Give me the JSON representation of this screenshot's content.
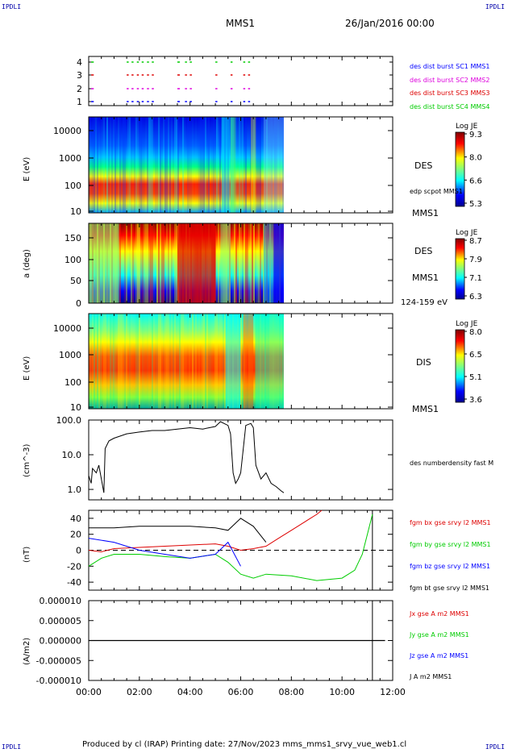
{
  "corners": {
    "tl": "IPDLI",
    "tr": "IPDLI",
    "bl": "IPDLI",
    "br": "IPDLI"
  },
  "header": {
    "spacecraft": "MMS1",
    "date": "26/Jan/2016 00:00"
  },
  "footer": {
    "text": "Produced by cl (IRAP)   Printing date: 27/Nov/2023   mms_mms1_srvy_vue_web1.cl"
  },
  "colors": {
    "blue": "#0000ff",
    "magenta": "#dd00dd",
    "red": "#dd0000",
    "green": "#00cc00",
    "black": "#000000"
  },
  "chart_data": [
    {
      "type": "scatter",
      "name": "burst-availability",
      "yticks": [
        "1",
        "2",
        "3",
        "4"
      ],
      "legend": [
        {
          "text": "des dist burst SC1 MMS1",
          "color": "#0000ff"
        },
        {
          "text": "des dist burst SC2 MMS2",
          "color": "#dd00dd"
        },
        {
          "text": "des dist burst SC3 MMS3",
          "color": "#dd0000"
        },
        {
          "text": "des dist burst SC4 MMS4",
          "color": "#00cc00"
        }
      ],
      "segments_hours": [
        [
          0.1,
          0.2
        ],
        [
          1.5,
          1.75
        ],
        [
          1.9,
          2.1
        ],
        [
          2.3,
          2.6
        ],
        [
          3.5,
          3.6
        ],
        [
          3.8,
          4.0
        ],
        [
          5.0,
          5.15
        ],
        [
          5.6,
          5.75
        ],
        [
          6.1,
          6.3
        ]
      ],
      "xlim": [
        0,
        12
      ]
    },
    {
      "type": "heatmap",
      "name": "des-energy",
      "ylabel": "E (eV)",
      "ytick_labels": [
        "10",
        "100",
        "1000",
        "10000"
      ],
      "colorbar": {
        "title": "Log JE",
        "ticks": [
          "9.3",
          "8.0",
          "6.6",
          "5.3"
        ]
      },
      "right_labels": [
        "DES",
        "edp scpot MMS1",
        "MMS1"
      ],
      "x_end_hours": 7.7,
      "xlim": [
        0,
        12
      ]
    },
    {
      "type": "heatmap",
      "name": "des-pitch-angle",
      "ylabel": "a (deg)",
      "ytick_labels": [
        "0",
        "50",
        "100",
        "150"
      ],
      "colorbar": {
        "title": "Log JE",
        "ticks": [
          "8.7",
          "7.9",
          "7.1",
          "6.3"
        ]
      },
      "right_labels": [
        "DES",
        "MMS1",
        "124-159 eV"
      ],
      "x_end_hours": 7.7,
      "xlim": [
        0,
        12
      ]
    },
    {
      "type": "heatmap",
      "name": "dis-energy",
      "ylabel": "E (eV)",
      "ytick_labels": [
        "10",
        "100",
        "1000",
        "10000"
      ],
      "colorbar": {
        "title": "Log JE",
        "ticks": [
          "8.0",
          "6.5",
          "5.1",
          "3.6"
        ]
      },
      "right_labels": [
        "DIS",
        "MMS1"
      ],
      "x_end_hours": 7.7,
      "xlim": [
        0,
        12
      ]
    },
    {
      "type": "line",
      "name": "density",
      "ylabel": "(cm^-3)",
      "yscale": "log",
      "ylim": [
        0.5,
        100
      ],
      "ytick_labels": [
        "1.0",
        "10.0",
        "100.0"
      ],
      "legend": [
        {
          "text": "des numberdensity fast M",
          "color": "#000000"
        }
      ],
      "series": [
        {
          "values_t": [
            0,
            0.1,
            0.15,
            0.3,
            0.4,
            0.5,
            0.6,
            0.65,
            0.8,
            1.0,
            1.5,
            2.0,
            2.5,
            3.0,
            3.5,
            4.0,
            4.5,
            5.0,
            5.2,
            5.5,
            5.6,
            5.7,
            5.8,
            5.9,
            6.0,
            6.2,
            6.4,
            6.5,
            6.6,
            6.8,
            7.0,
            7.2,
            7.4,
            7.6,
            7.7
          ],
          "values_y": [
            2.5,
            1.5,
            4,
            3,
            5,
            2,
            0.8,
            15,
            25,
            30,
            40,
            45,
            50,
            50,
            55,
            60,
            55,
            65,
            90,
            70,
            40,
            3,
            1.5,
            2,
            3,
            70,
            80,
            60,
            5,
            2,
            3,
            1.5,
            1.2,
            0.9,
            0.8
          ]
        }
      ],
      "xlim": [
        0,
        12
      ]
    },
    {
      "type": "line",
      "name": "magnetic-field",
      "ylabel": "(nT)",
      "ylim": [
        -50,
        50
      ],
      "ytick_labels": [
        "-40",
        "-20",
        "0",
        "20",
        "40"
      ],
      "legend": [
        {
          "text": "fgm bx gse srvy l2 MMS1",
          "color": "#dd0000"
        },
        {
          "text": "fgm by gse srvy l2 MMS1",
          "color": "#00cc00"
        },
        {
          "text": "fgm bz gse srvy l2 MMS1",
          "color": "#0000ff"
        },
        {
          "text": "fgm bt gse srvy l2 MMS1",
          "color": "#000000"
        }
      ],
      "series": [
        {
          "name": "bx",
          "color": "#dd0000",
          "t": [
            0,
            0.5,
            1,
            3,
            5,
            5.5,
            6,
            6.5,
            7,
            7.5,
            8,
            8.5,
            9,
            9.2
          ],
          "y": [
            0,
            -2,
            2,
            5,
            8,
            5,
            0,
            2,
            5,
            15,
            25,
            35,
            45,
            50
          ]
        },
        {
          "name": "by",
          "color": "#00cc00",
          "t": [
            0,
            0.5,
            1,
            2,
            3,
            4,
            5,
            5.5,
            6,
            6.5,
            7,
            8,
            9,
            10,
            10.5,
            10.8,
            11,
            11.2
          ],
          "y": [
            -20,
            -10,
            -5,
            -5,
            -8,
            -10,
            -5,
            -15,
            -30,
            -35,
            -30,
            -32,
            -38,
            -35,
            -25,
            -5,
            20,
            45
          ]
        },
        {
          "name": "bz",
          "color": "#0000ff",
          "t": [
            0,
            1,
            2,
            3,
            4,
            5,
            5.5,
            6
          ],
          "y": [
            15,
            10,
            0,
            -5,
            -10,
            -5,
            10,
            -20
          ]
        },
        {
          "name": "bt",
          "color": "#000000",
          "t": [
            0,
            1,
            2,
            3,
            4,
            5,
            5.5,
            6,
            6.5,
            7
          ],
          "y": [
            28,
            28,
            30,
            30,
            30,
            28,
            25,
            40,
            30,
            10
          ]
        }
      ],
      "xlim": [
        0,
        12
      ]
    },
    {
      "type": "line",
      "name": "current-density",
      "ylabel": "(A/m2)",
      "ylim": [
        -1e-05,
        1e-05
      ],
      "ytick_labels": [
        "-0.000010",
        "-0.000005",
        "0.000000",
        "0.000005",
        "0.000010"
      ],
      "legend": [
        {
          "text": "Jx gse A m2 MMS1",
          "color": "#dd0000"
        },
        {
          "text": "Jy gse A m2 MMS1",
          "color": "#00cc00"
        },
        {
          "text": "Jz gse A m2 MMS1",
          "color": "#0000ff"
        },
        {
          "text": "J A m2 MMS1",
          "color": "#000000"
        }
      ],
      "xtick_labels": [
        "00:00",
        "02:00",
        "04:00",
        "06:00",
        "08:00",
        "10:00",
        "12:00"
      ],
      "xlim": [
        0,
        12
      ]
    }
  ]
}
